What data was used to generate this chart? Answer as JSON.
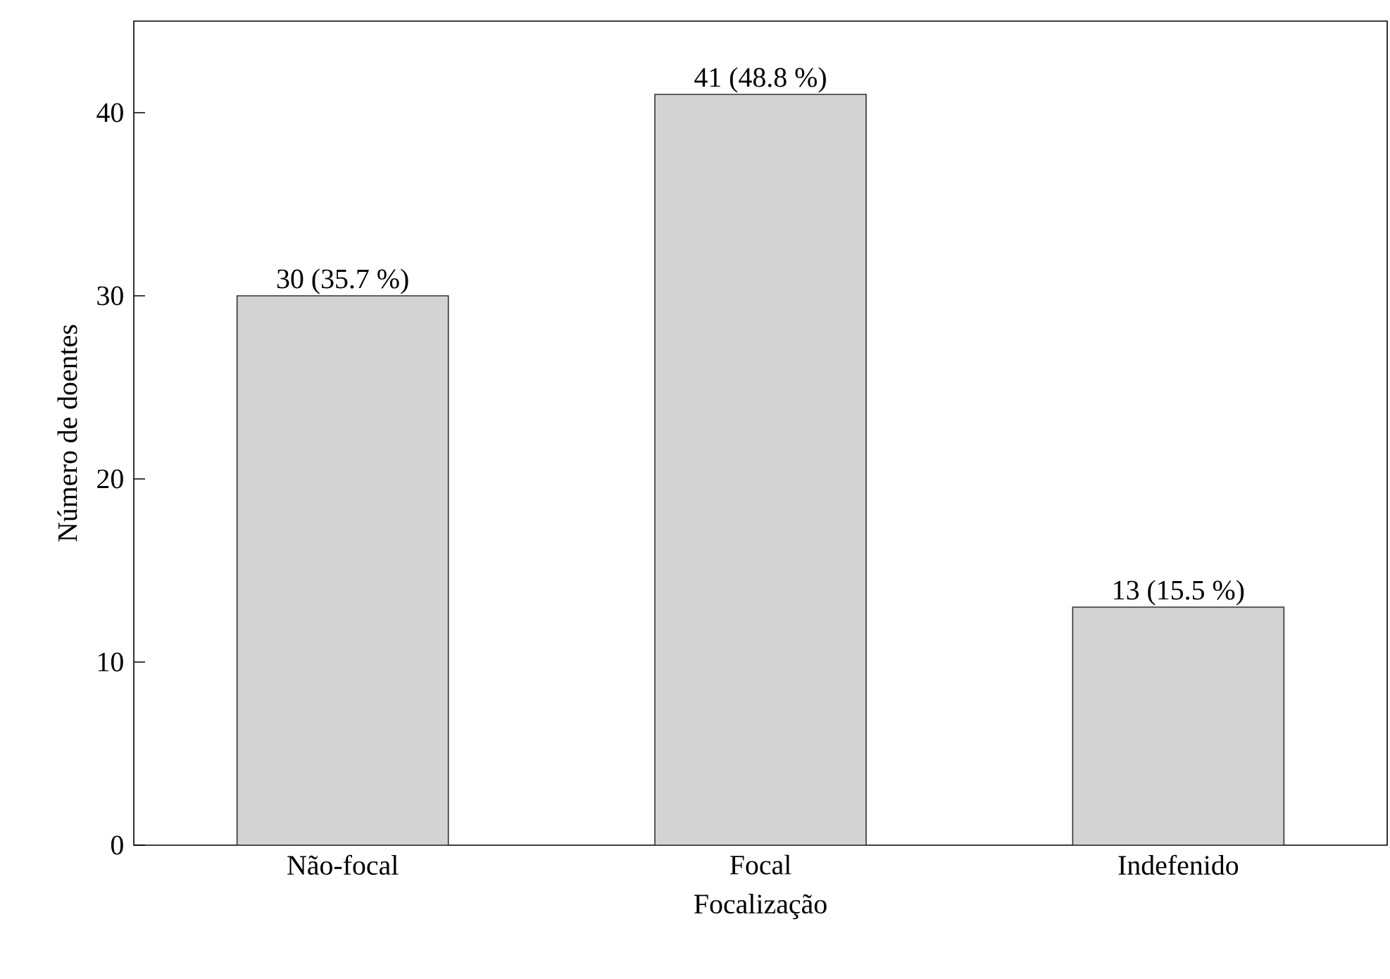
{
  "chart_data": {
    "type": "bar",
    "xlabel": "Focalização",
    "ylabel": "Número de doentes",
    "categories": [
      "Não-focal",
      "Focal",
      "Indefenido"
    ],
    "values": [
      30,
      41,
      13
    ],
    "color": "#d3d3d3",
    "value_labels": [
      "30 (35.7 %)",
      "41 (48.8 %)",
      "13 (15.5 %)"
    ],
    "ylim": [
      0,
      45
    ],
    "yticks": [
      0,
      10,
      20,
      30,
      40
    ],
    "grid": false
  }
}
